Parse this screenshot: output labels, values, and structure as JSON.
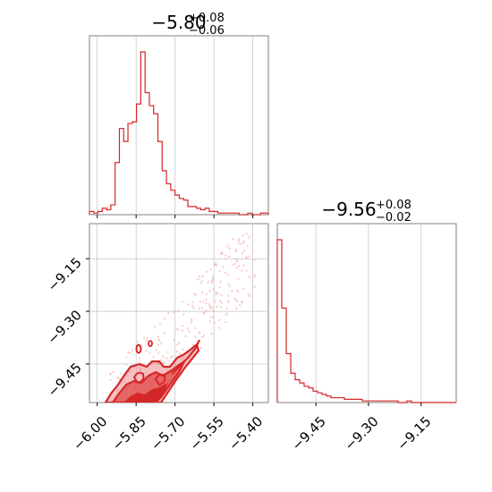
{
  "chart_data": {
    "type": "corner",
    "color": "#d62728",
    "fill_color": "#f08080",
    "grid": true,
    "params": [
      {
        "title": {
          "median": "−5.80",
          "plus": "+0.08",
          "minus": "−0.06"
        },
        "range": [
          -6.03,
          -5.34
        ],
        "ticks": [
          -6.0,
          -5.85,
          -5.7,
          -5.55,
          -5.4
        ],
        "tick_labels": [
          "−6.00",
          "−5.85",
          "−5.70",
          "−5.55",
          "−5.40"
        ]
      },
      {
        "title": {
          "median": "−9.56",
          "plus": "+0.08",
          "minus": "−0.02"
        },
        "range": [
          -9.56,
          -9.05
        ],
        "ticks": [
          -9.45,
          -9.3,
          -9.15
        ],
        "tick_labels": [
          "−9.45",
          "−9.30",
          "−9.15"
        ]
      }
    ],
    "hist_x": {
      "bin_edges": [
        -6.03,
        -6.0135,
        -5.997,
        -5.9805,
        -5.964,
        -5.9475,
        -5.931,
        -5.9145,
        -5.898,
        -5.8815,
        -5.865,
        -5.8485,
        -5.832,
        -5.8155,
        -5.799,
        -5.7825,
        -5.766,
        -5.7495,
        -5.733,
        -5.7165,
        -5.7,
        -5.6835,
        -5.667,
        -5.6505,
        -5.634,
        -5.6175,
        -5.601,
        -5.5845,
        -5.568,
        -5.5515,
        -5.535,
        -5.5185,
        -5.502,
        -5.4855,
        -5.469,
        -5.4525,
        -5.436,
        -5.4195,
        -5.403,
        -5.3865,
        -5.37,
        -5.3535,
        -5.34
      ],
      "counts": [
        2,
        1,
        2,
        4,
        3,
        6,
        32,
        53,
        45,
        56,
        57,
        68,
        100,
        75,
        67,
        62,
        45,
        27,
        19,
        15,
        12,
        10,
        9,
        5,
        5,
        4,
        3,
        4,
        2,
        2,
        1,
        1,
        1,
        1,
        1,
        0,
        0,
        1,
        0,
        0,
        1,
        1
      ]
    },
    "hist_y": {
      "bin_edges": [
        -9.56,
        -9.5472,
        -9.5345,
        -9.5217,
        -9.509,
        -9.4962,
        -9.4835,
        -9.4707,
        -9.458,
        -9.4452,
        -9.4325,
        -9.4197,
        -9.407,
        -9.3942,
        -9.3815,
        -9.3687,
        -9.356,
        -9.3432,
        -9.3305,
        -9.3177,
        -9.305,
        -9.2922,
        -9.2795,
        -9.2667,
        -9.254,
        -9.2412,
        -9.2285,
        -9.2157,
        -9.203,
        -9.1902,
        -9.1775,
        -9.1647,
        -9.152,
        -9.1392,
        -9.1265,
        -9.1137,
        -9.101,
        -9.0882,
        -9.0755,
        -9.0627,
        -9.05
      ],
      "counts": [
        100,
        58,
        30,
        18,
        14,
        12,
        10,
        9,
        7,
        6,
        5,
        4,
        3,
        3,
        3,
        2,
        2,
        2,
        2,
        1,
        1,
        1,
        1,
        1,
        1,
        1,
        1,
        0,
        0,
        1,
        0,
        0,
        0,
        0,
        0,
        0,
        0,
        0,
        0,
        0
      ]
    }
  }
}
